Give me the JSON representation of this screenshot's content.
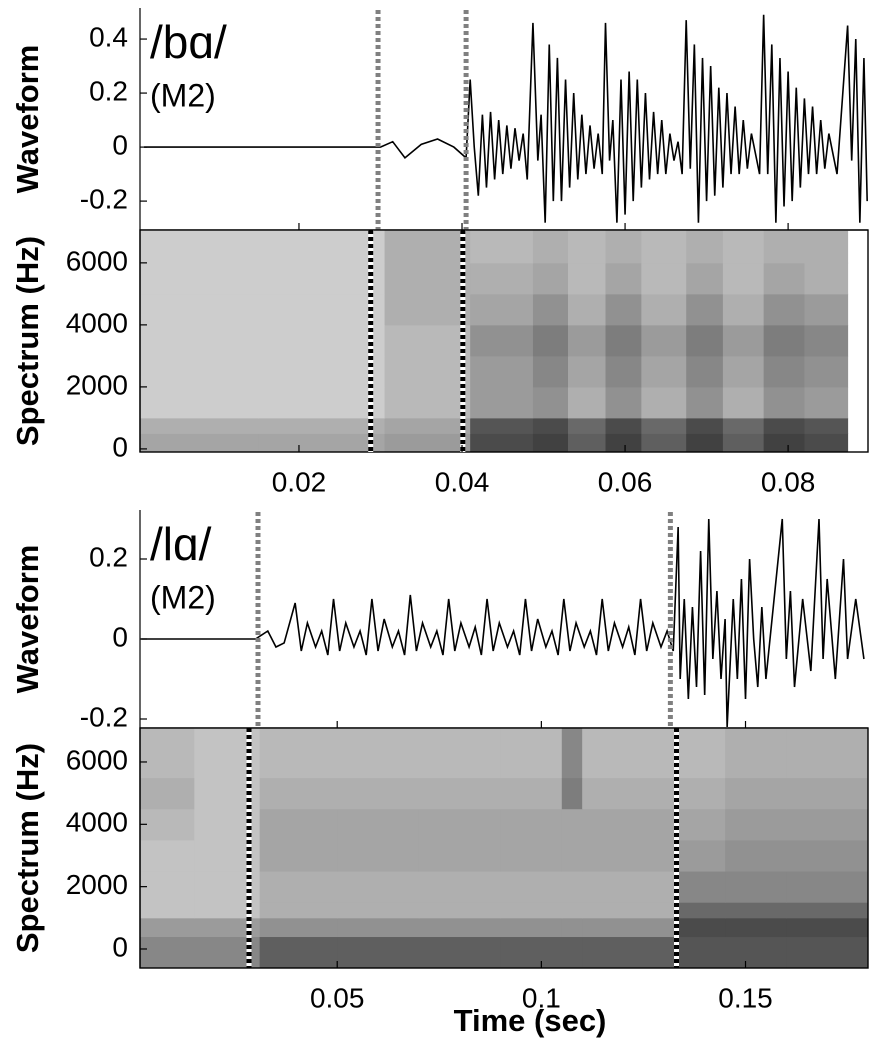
{
  "chart_data": [
    {
      "type": "line",
      "annotations": [
        "/bɑ/",
        "(M2)"
      ],
      "ylabel": "Waveform",
      "color": "#000000",
      "marker_color": "#808080",
      "xlim": [
        0.0005,
        0.0898
      ],
      "ylim": [
        -0.307,
        0.515
      ],
      "yticks": [
        -0.2,
        0,
        0.2,
        0.4
      ],
      "markers": [
        0.0297,
        0.0405
      ],
      "x": [
        0.001,
        0.01,
        0.02,
        0.03,
        0.0315,
        0.033,
        0.035,
        0.037,
        0.039,
        0.0405,
        0.041,
        0.0415,
        0.042,
        0.0425,
        0.043,
        0.0435,
        0.044,
        0.0445,
        0.045,
        0.0455,
        0.046,
        0.0465,
        0.047,
        0.0475,
        0.048,
        0.0487,
        0.0493,
        0.0497,
        0.0502,
        0.0507,
        0.0512,
        0.0517,
        0.0522,
        0.0527,
        0.0532,
        0.0537,
        0.0542,
        0.0547,
        0.0552,
        0.0557,
        0.0562,
        0.0567,
        0.0572,
        0.0576,
        0.0581,
        0.0585,
        0.059,
        0.0595,
        0.06,
        0.0605,
        0.061,
        0.0615,
        0.062,
        0.0625,
        0.063,
        0.0635,
        0.064,
        0.0645,
        0.065,
        0.0655,
        0.066,
        0.0665,
        0.067,
        0.0675,
        0.068,
        0.0685,
        0.069,
        0.0695,
        0.07,
        0.0705,
        0.071,
        0.0715,
        0.072,
        0.0725,
        0.073,
        0.0735,
        0.074,
        0.0745,
        0.075,
        0.0755,
        0.0765,
        0.077,
        0.0775,
        0.078,
        0.0785,
        0.079,
        0.0795,
        0.08,
        0.0805,
        0.081,
        0.0815,
        0.082,
        0.0825,
        0.083,
        0.0835,
        0.084,
        0.0845,
        0.085,
        0.086,
        0.0873,
        0.0878,
        0.0883,
        0.0888,
        0.0893,
        0.0897
      ],
      "values": [
        0,
        0,
        0,
        0,
        0.02,
        -0.04,
        0.01,
        0.03,
        0,
        -0.04,
        0.25,
        0,
        -0.18,
        0.12,
        -0.15,
        0.13,
        -0.12,
        0.1,
        -0.1,
        0.08,
        -0.08,
        0.07,
        -0.05,
        0.05,
        -0.12,
        0.46,
        -0.05,
        0.12,
        -0.28,
        0.38,
        -0.2,
        0.33,
        -0.2,
        0.25,
        -0.15,
        0.2,
        -0.12,
        0.12,
        -0.1,
        0.08,
        -0.08,
        0.05,
        -0.1,
        0.46,
        -0.05,
        0.1,
        -0.28,
        0.25,
        -0.25,
        0.28,
        -0.2,
        0.25,
        -0.15,
        0.2,
        -0.12,
        0.13,
        -0.1,
        0.1,
        -0.1,
        0.05,
        -0.05,
        0.02,
        -0.1,
        0.47,
        -0.08,
        0.38,
        -0.28,
        0.33,
        -0.2,
        0.3,
        -0.18,
        0.22,
        -0.15,
        0.2,
        -0.1,
        0.15,
        -0.1,
        0.1,
        -0.08,
        0.05,
        -0.1,
        0.49,
        -0.1,
        0.38,
        -0.28,
        0.33,
        -0.22,
        0.28,
        -0.2,
        0.22,
        -0.15,
        0.18,
        -0.1,
        0.15,
        -0.1,
        0.1,
        -0.08,
        0.05,
        -0.1,
        0.45,
        -0.05,
        0.4,
        -0.28,
        0.33,
        -0.2
      ]
    },
    {
      "type": "spectrogram",
      "ylabel": "Spectrum (Hz)",
      "marker_color": "#000000",
      "xlim": [
        0.0005,
        0.0898
      ],
      "ylim": [
        -100,
        7060
      ],
      "xticks": [
        0.02,
        0.04,
        0.06,
        0.08
      ],
      "yticks": [
        0,
        2000,
        4000,
        6000
      ],
      "markers": [
        0.0288,
        0.0401
      ],
      "time_edges": [
        0.0005,
        0.015,
        0.0305,
        0.041,
        0.0487,
        0.053,
        0.0576,
        0.062,
        0.0675,
        0.072,
        0.077,
        0.082,
        0.0873,
        0.0898
      ],
      "freq_edges": [
        -100,
        500,
        1000,
        2000,
        3000,
        4000,
        5000,
        6000,
        7060
      ],
      "z": [
        [
          0.35,
          0.35,
          0.4,
          0.8,
          0.85,
          0.7,
          0.85,
          0.7,
          0.85,
          0.7,
          0.85,
          0.8
        ],
        [
          0.3,
          0.3,
          0.35,
          0.75,
          0.8,
          0.65,
          0.8,
          0.65,
          0.8,
          0.65,
          0.8,
          0.75
        ],
        [
          0.15,
          0.15,
          0.25,
          0.4,
          0.45,
          0.3,
          0.45,
          0.3,
          0.45,
          0.3,
          0.45,
          0.4
        ],
        [
          0.15,
          0.15,
          0.25,
          0.4,
          0.5,
          0.35,
          0.5,
          0.35,
          0.5,
          0.35,
          0.5,
          0.45
        ],
        [
          0.15,
          0.15,
          0.25,
          0.45,
          0.55,
          0.4,
          0.55,
          0.4,
          0.55,
          0.4,
          0.55,
          0.5
        ],
        [
          0.15,
          0.15,
          0.3,
          0.35,
          0.45,
          0.3,
          0.45,
          0.3,
          0.45,
          0.3,
          0.45,
          0.4
        ],
        [
          0.15,
          0.15,
          0.3,
          0.3,
          0.35,
          0.25,
          0.35,
          0.25,
          0.35,
          0.25,
          0.35,
          0.3
        ],
        [
          0.15,
          0.15,
          0.3,
          0.25,
          0.3,
          0.25,
          0.3,
          0.25,
          0.3,
          0.25,
          0.3,
          0.3
        ]
      ]
    },
    {
      "type": "line",
      "annotations": [
        "/lɑ/",
        "(M2)"
      ],
      "ylabel": "Waveform",
      "color": "#000000",
      "marker_color": "#808080",
      "xlim": [
        0.0017,
        0.18
      ],
      "ylim": [
        -0.2225,
        0.3225
      ],
      "yticks": [
        -0.2,
        0,
        0.2
      ],
      "markers": [
        0.0306,
        0.1316
      ],
      "x": [
        0.002,
        0.01,
        0.02,
        0.03,
        0.033,
        0.035,
        0.037,
        0.0397,
        0.0412,
        0.0427,
        0.0447,
        0.0462,
        0.0477,
        0.0491,
        0.0506,
        0.0521,
        0.0541,
        0.0556,
        0.0571,
        0.0585,
        0.06,
        0.0615,
        0.0635,
        0.065,
        0.0665,
        0.0679,
        0.0694,
        0.0709,
        0.0729,
        0.0744,
        0.0759,
        0.0773,
        0.0788,
        0.0803,
        0.0823,
        0.0838,
        0.0853,
        0.0867,
        0.0882,
        0.0897,
        0.0917,
        0.0932,
        0.0947,
        0.0961,
        0.0976,
        0.0991,
        0.1011,
        0.1026,
        0.1041,
        0.1055,
        0.107,
        0.1085,
        0.1105,
        0.112,
        0.1135,
        0.1149,
        0.1164,
        0.1179,
        0.1199,
        0.1214,
        0.1229,
        0.1243,
        0.1258,
        0.1273,
        0.1293,
        0.1308,
        0.1323,
        0.1335,
        0.134,
        0.135,
        0.136,
        0.137,
        0.138,
        0.139,
        0.14,
        0.141,
        0.142,
        0.143,
        0.144,
        0.145,
        0.1455,
        0.147,
        0.148,
        0.149,
        0.15,
        0.151,
        0.152,
        0.153,
        0.154,
        0.155,
        0.157,
        0.159,
        0.16,
        0.161,
        0.162,
        0.164,
        0.166,
        0.168,
        0.169,
        0.17,
        0.172,
        0.174,
        0.175,
        0.177,
        0.179
      ],
      "values": [
        0,
        0,
        0,
        0,
        0.02,
        -0.02,
        -0.01,
        0.09,
        -0.03,
        0.04,
        -0.02,
        0.02,
        -0.04,
        0.1,
        -0.03,
        0.04,
        -0.02,
        0.02,
        -0.04,
        0.1,
        -0.03,
        0.05,
        -0.02,
        0.02,
        -0.04,
        0.11,
        -0.03,
        0.04,
        -0.02,
        0.02,
        -0.04,
        0.1,
        -0.03,
        0.04,
        -0.02,
        0.03,
        -0.04,
        0.1,
        -0.03,
        0.04,
        -0.02,
        0.02,
        -0.04,
        0.1,
        -0.03,
        0.05,
        -0.02,
        0.02,
        -0.04,
        0.1,
        -0.03,
        0.04,
        -0.02,
        0.02,
        -0.04,
        0.1,
        -0.03,
        0.04,
        -0.02,
        0.03,
        -0.04,
        0.1,
        -0.03,
        0.04,
        -0.02,
        0.02,
        -0.03,
        0.28,
        -0.1,
        0.1,
        -0.15,
        0.08,
        -0.12,
        0.22,
        -0.14,
        0.3,
        -0.05,
        0.12,
        -0.1,
        0.05,
        -0.22,
        0.1,
        -0.1,
        0.15,
        -0.15,
        0.2,
        0,
        -0.12,
        0.08,
        -0.1,
        0.1,
        0.3,
        -0.05,
        0.12,
        -0.12,
        0.1,
        -0.08,
        0.3,
        -0.05,
        0.15,
        -0.1,
        0.2,
        -0.05,
        0.1,
        -0.05
      ]
    },
    {
      "type": "spectrogram",
      "ylabel": "Spectrum (Hz)",
      "xlabel": "Time (sec)",
      "marker_color": "#000000",
      "xlim": [
        0.0017,
        0.18
      ],
      "ylim": [
        -610,
        7090
      ],
      "xticks": [
        0.05,
        0.1,
        0.15
      ],
      "yticks": [
        0,
        2000,
        4000,
        6000
      ],
      "markers": [
        0.0284,
        0.1331
      ],
      "time_edges": [
        0.0017,
        0.015,
        0.031,
        0.05,
        0.07,
        0.09,
        0.105,
        0.11,
        0.133,
        0.145,
        0.16,
        0.18
      ],
      "freq_edges": [
        -610,
        400,
        1000,
        1500,
        2500,
        3500,
        4500,
        5500,
        7090
      ],
      "z": [
        [
          0.5,
          0.5,
          0.7,
          0.7,
          0.7,
          0.7,
          0.7,
          0.7,
          0.75,
          0.75,
          0.75
        ],
        [
          0.4,
          0.4,
          0.45,
          0.45,
          0.45,
          0.45,
          0.45,
          0.45,
          0.8,
          0.8,
          0.8
        ],
        [
          0.2,
          0.2,
          0.3,
          0.3,
          0.3,
          0.3,
          0.3,
          0.3,
          0.65,
          0.65,
          0.65
        ],
        [
          0.2,
          0.2,
          0.3,
          0.3,
          0.3,
          0.3,
          0.3,
          0.3,
          0.5,
          0.5,
          0.5
        ],
        [
          0.2,
          0.2,
          0.35,
          0.35,
          0.35,
          0.35,
          0.35,
          0.35,
          0.4,
          0.45,
          0.45
        ],
        [
          0.25,
          0.2,
          0.35,
          0.35,
          0.35,
          0.35,
          0.35,
          0.35,
          0.35,
          0.4,
          0.4
        ],
        [
          0.3,
          0.2,
          0.3,
          0.3,
          0.3,
          0.3,
          0.55,
          0.3,
          0.3,
          0.35,
          0.35
        ],
        [
          0.25,
          0.2,
          0.25,
          0.25,
          0.25,
          0.25,
          0.5,
          0.25,
          0.25,
          0.3,
          0.3
        ]
      ]
    }
  ]
}
